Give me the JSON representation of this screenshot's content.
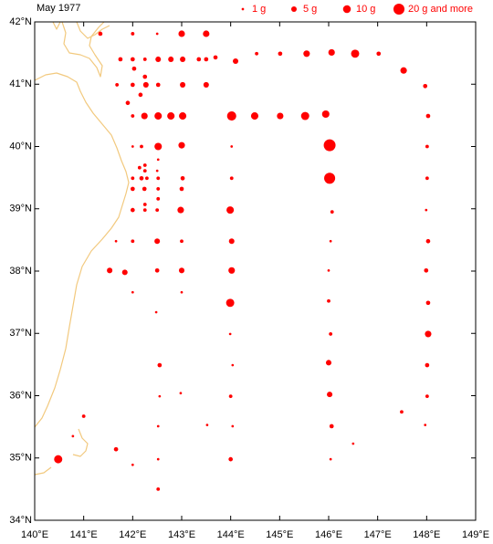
{
  "chart_data": {
    "type": "bubble",
    "title": "May 1977",
    "color": "#ff0000",
    "legend": {
      "labels": [
        "1 g",
        "5 g",
        "10 g",
        "20 g and more"
      ],
      "sizes": [
        1,
        5,
        10,
        20
      ]
    },
    "xlim": [
      140,
      149
    ],
    "ylim": [
      34,
      42
    ],
    "xticks": [
      {
        "value": 140,
        "label": "140°E"
      },
      {
        "value": 141,
        "label": "141°E"
      },
      {
        "value": 142,
        "label": "142°E"
      },
      {
        "value": 143,
        "label": "143°E"
      },
      {
        "value": 144,
        "label": "144°E"
      },
      {
        "value": 145,
        "label": "145°E"
      },
      {
        "value": 146,
        "label": "146°E"
      },
      {
        "value": 147,
        "label": "147°E"
      },
      {
        "value": 148,
        "label": "148°E"
      },
      {
        "value": 149,
        "label": "149°E"
      }
    ],
    "yticks": [
      {
        "value": 34,
        "label": "34°N"
      },
      {
        "value": 35,
        "label": "35°N"
      },
      {
        "value": 36,
        "label": "36°N"
      },
      {
        "value": 37,
        "label": "37°N"
      },
      {
        "value": 38,
        "label": "38°N"
      },
      {
        "value": 39,
        "label": "39°N"
      },
      {
        "value": 40,
        "label": "40°N"
      },
      {
        "value": 41,
        "label": "41°N"
      },
      {
        "value": 42,
        "label": "42°N"
      }
    ],
    "x": [
      141.34,
      142.0,
      142.5,
      143.0,
      143.5,
      141.75,
      142.0,
      142.25,
      142.52,
      142.78,
      143.02,
      143.35,
      143.5,
      143.69,
      144.1,
      144.53,
      145.01,
      145.55,
      146.06,
      146.54,
      147.02,
      147.53,
      147.97,
      142.03,
      141.68,
      142.0,
      142.27,
      142.52,
      143.02,
      143.5,
      142.25,
      142.16,
      141.9,
      142.0,
      142.24,
      142.52,
      142.78,
      143.02,
      144.02,
      144.49,
      145.01,
      145.52,
      145.94,
      148.03,
      142.0,
      142.18,
      142.52,
      143.0,
      144.02,
      146.02,
      148.01,
      142.52,
      142.25,
      142.14,
      142.25,
      142.5,
      142.0,
      142.18,
      142.29,
      142.52,
      143.02,
      144.02,
      146.02,
      148.01,
      142.0,
      142.24,
      142.52,
      143.0,
      142.52,
      142.25,
      142.0,
      142.25,
      142.5,
      142.98,
      143.99,
      146.07,
      147.99,
      141.66,
      142.0,
      142.5,
      143.0,
      144.02,
      146.04,
      148.03,
      141.53,
      141.84,
      142.5,
      143.0,
      144.02,
      146.0,
      147.99,
      142.0,
      143.0,
      143.99,
      146.0,
      148.03,
      142.48,
      143.99,
      146.04,
      148.03,
      142.55,
      144.04,
      146.0,
      148.01,
      142.55,
      142.98,
      144.0,
      146.02,
      148.01,
      147.49,
      141.0,
      142.52,
      143.52,
      144.04,
      146.06,
      147.97,
      140.78,
      146.5,
      141.66,
      140.48,
      142.52,
      144.0,
      146.04,
      142.0,
      142.52
    ],
    "values": [
      41.81,
      41.81,
      41.81,
      41.81,
      41.81,
      41.4,
      41.4,
      41.4,
      41.4,
      41.4,
      41.4,
      41.4,
      41.4,
      41.43,
      41.37,
      41.49,
      41.49,
      41.49,
      41.51,
      41.49,
      41.49,
      41.22,
      40.97,
      41.25,
      40.99,
      40.99,
      40.99,
      40.99,
      40.99,
      40.99,
      41.12,
      40.83,
      40.7,
      40.49,
      40.49,
      40.49,
      40.49,
      40.49,
      40.49,
      40.49,
      40.49,
      40.49,
      40.52,
      40.49,
      40.0,
      40.0,
      40.0,
      40.02,
      40.0,
      40.02,
      40.0,
      39.79,
      39.7,
      39.66,
      39.61,
      39.61,
      39.49,
      39.49,
      39.49,
      39.49,
      39.49,
      39.49,
      39.49,
      39.49,
      39.32,
      39.32,
      39.32,
      39.32,
      39.16,
      39.07,
      38.98,
      38.98,
      38.98,
      38.98,
      38.98,
      38.95,
      38.98,
      38.48,
      38.48,
      38.48,
      38.48,
      38.48,
      38.48,
      38.48,
      38.01,
      37.98,
      38.01,
      38.01,
      38.01,
      38.01,
      38.01,
      37.66,
      37.66,
      37.49,
      37.52,
      37.49,
      37.34,
      36.99,
      36.99,
      36.99,
      36.49,
      36.49,
      36.53,
      36.49,
      35.99,
      36.04,
      35.99,
      36.02,
      35.99,
      35.74,
      35.67,
      35.51,
      35.53,
      35.51,
      35.51,
      35.53,
      35.35,
      35.23,
      35.14,
      34.98,
      34.98,
      34.98,
      34.98,
      34.89,
      34.5
    ],
    "sizes": [
      3,
      2,
      1,
      7,
      7,
      3,
      3,
      2,
      5,
      5,
      5,
      3,
      3,
      3,
      5,
      2,
      3,
      7,
      7,
      11,
      3,
      7,
      3,
      3,
      2,
      3,
      5,
      3,
      5,
      5,
      3,
      3,
      3,
      2,
      7,
      9,
      9,
      9,
      14,
      9,
      7,
      11,
      9,
      3,
      1,
      2,
      9,
      7,
      1,
      23,
      2,
      1,
      2,
      2,
      2,
      1,
      2,
      3,
      2,
      2,
      3,
      2,
      20,
      2,
      3,
      3,
      2,
      3,
      2,
      2,
      3,
      2,
      2,
      7,
      9,
      2,
      1,
      1,
      2,
      5,
      2,
      5,
      1,
      3,
      5,
      5,
      3,
      5,
      7,
      1,
      3,
      1,
      1,
      11,
      2,
      3,
      1,
      1,
      2,
      7,
      3,
      1,
      5,
      3,
      1,
      1,
      2,
      5,
      2,
      2,
      2,
      1,
      1,
      1,
      3,
      1,
      1,
      1,
      3,
      11,
      1,
      3,
      1,
      1,
      2
    ]
  }
}
